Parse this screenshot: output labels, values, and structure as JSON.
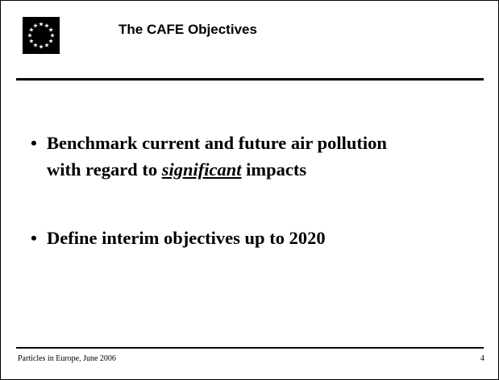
{
  "header": {
    "title": "The CAFE Objectives"
  },
  "bullets": [
    {
      "lines": [
        "Benchmark current and future air pollution",
        "with regard to ",
        "significant",
        " impacts"
      ]
    },
    {
      "lines": [
        "Define interim objectives up to 2020"
      ]
    }
  ],
  "footer": {
    "text": "Particles in Europe, June 2006",
    "page": "4"
  }
}
